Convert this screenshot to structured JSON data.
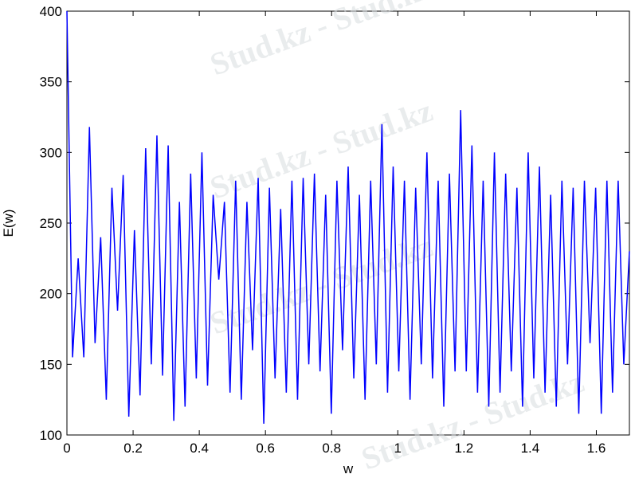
{
  "chart_data": {
    "type": "line",
    "xlabel": "w",
    "ylabel": "E(w)",
    "watermark": "Stud.kz - Stud.kz",
    "x": [
      0,
      0.017,
      0.034,
      0.051,
      0.068,
      0.085,
      0.102,
      0.119,
      0.136,
      0.153,
      0.17,
      0.187,
      0.204,
      0.221,
      0.238,
      0.255,
      0.272,
      0.289,
      0.306,
      0.323,
      0.34,
      0.357,
      0.374,
      0.391,
      0.408,
      0.425,
      0.442,
      0.459,
      0.476,
      0.493,
      0.51,
      0.527,
      0.544,
      0.561,
      0.578,
      0.595,
      0.612,
      0.629,
      0.646,
      0.663,
      0.68,
      0.697,
      0.714,
      0.731,
      0.748,
      0.765,
      0.782,
      0.799,
      0.816,
      0.833,
      0.85,
      0.867,
      0.884,
      0.901,
      0.918,
      0.935,
      0.952,
      0.969,
      0.986,
      1.003,
      1.02,
      1.037,
      1.054,
      1.071,
      1.088,
      1.105,
      1.122,
      1.139,
      1.156,
      1.173,
      1.19,
      1.207,
      1.224,
      1.241,
      1.258,
      1.275,
      1.292,
      1.309,
      1.326,
      1.343,
      1.36,
      1.377,
      1.394,
      1.411,
      1.428,
      1.445,
      1.462,
      1.479,
      1.496,
      1.513,
      1.53,
      1.547,
      1.564,
      1.581,
      1.598,
      1.615,
      1.632,
      1.649,
      1.666,
      1.683,
      1.7
    ],
    "series": [
      {
        "color": "#0000ff",
        "values": [
          400,
          155,
          225,
          155,
          318,
          165,
          240,
          125,
          275,
          188,
          284,
          113,
          245,
          128,
          303,
          150,
          312,
          142,
          305,
          110,
          265,
          120,
          285,
          140,
          300,
          135,
          270,
          210,
          265,
          130,
          280,
          125,
          265,
          160,
          282,
          108,
          275,
          140,
          260,
          130,
          280,
          125,
          282,
          150,
          285,
          145,
          270,
          115,
          280,
          160,
          290,
          140,
          270,
          125,
          280,
          150,
          320,
          130,
          290,
          145,
          280,
          125,
          275,
          150,
          300,
          140,
          280,
          120,
          285,
          145,
          330,
          145,
          305,
          130,
          280,
          120,
          300,
          130,
          285,
          145,
          275,
          120,
          300,
          140,
          290,
          130,
          270,
          120,
          280,
          150,
          275,
          115,
          280,
          165,
          275,
          115,
          280,
          130,
          280,
          150,
          230
        ]
      }
    ],
    "xlim": [
      0,
      1.7
    ],
    "ylim": [
      100,
      400
    ],
    "xticks": [
      0,
      0.2,
      0.4,
      0.6,
      0.8,
      1,
      1.2,
      1.4,
      1.6
    ],
    "yticks": [
      100,
      150,
      200,
      250,
      300,
      350,
      400
    ]
  }
}
